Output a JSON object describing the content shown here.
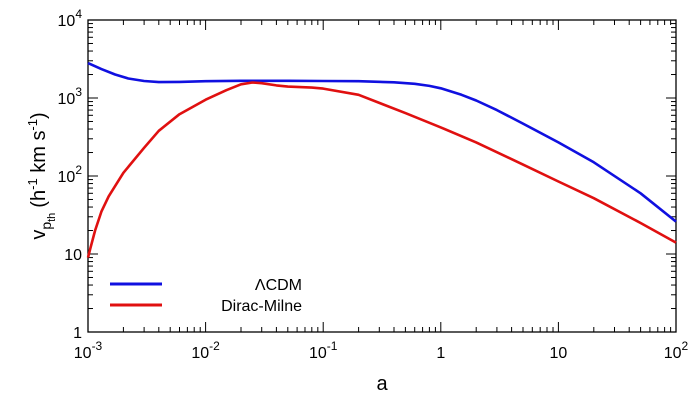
{
  "chart_data": {
    "type": "line",
    "title": "",
    "xlabel": "a",
    "ylabel": "v_p_th (h^-1 km s^-1)",
    "ylabel_parts": {
      "base": "v",
      "sub": "p",
      "subsub": "th",
      "open": "(h",
      "exp1": "-1",
      "mid": " km s",
      "exp2": "-1",
      "close": ")"
    },
    "xscale": "log",
    "yscale": "log",
    "xlim": [
      0.001,
      100
    ],
    "ylim": [
      1,
      10000
    ],
    "grid": false,
    "legend_position": "bottom-left",
    "x_ticks": [
      {
        "value": 0.001,
        "base": "10",
        "exp": "-3"
      },
      {
        "value": 0.01,
        "base": "10",
        "exp": "-2"
      },
      {
        "value": 0.1,
        "base": "10",
        "exp": "-1"
      },
      {
        "value": 1,
        "base": "1",
        "exp": ""
      },
      {
        "value": 10,
        "base": "10",
        "exp": ""
      },
      {
        "value": 100,
        "base": "10",
        "exp": "2"
      }
    ],
    "y_ticks": [
      {
        "value": 1,
        "base": "1",
        "exp": ""
      },
      {
        "value": 10,
        "base": "10",
        "exp": ""
      },
      {
        "value": 100,
        "base": "10",
        "exp": "2"
      },
      {
        "value": 1000,
        "base": "10",
        "exp": "3"
      },
      {
        "value": 10000,
        "base": "10",
        "exp": "4"
      }
    ],
    "series": [
      {
        "name": "ΛCDM",
        "color": "#1010e0",
        "points": [
          [
            0.001,
            2800
          ],
          [
            0.0013,
            2350
          ],
          [
            0.0017,
            2000
          ],
          [
            0.0022,
            1780
          ],
          [
            0.003,
            1650
          ],
          [
            0.004,
            1600
          ],
          [
            0.006,
            1610
          ],
          [
            0.01,
            1640
          ],
          [
            0.02,
            1660
          ],
          [
            0.05,
            1660
          ],
          [
            0.1,
            1650
          ],
          [
            0.2,
            1640
          ],
          [
            0.4,
            1590
          ],
          [
            0.6,
            1520
          ],
          [
            0.8,
            1430
          ],
          [
            1,
            1330
          ],
          [
            1.5,
            1100
          ],
          [
            2,
            930
          ],
          [
            3,
            700
          ],
          [
            5,
            470
          ],
          [
            10,
            270
          ],
          [
            20,
            150
          ],
          [
            50,
            60
          ],
          [
            100,
            26
          ]
        ]
      },
      {
        "name": "Dirac-Milne",
        "color": "#e01010",
        "points": [
          [
            0.001,
            9
          ],
          [
            0.00105,
            12
          ],
          [
            0.00115,
            20
          ],
          [
            0.0013,
            35
          ],
          [
            0.0015,
            55
          ],
          [
            0.002,
            110
          ],
          [
            0.003,
            230
          ],
          [
            0.004,
            380
          ],
          [
            0.006,
            620
          ],
          [
            0.01,
            950
          ],
          [
            0.015,
            1260
          ],
          [
            0.02,
            1500
          ],
          [
            0.025,
            1580
          ],
          [
            0.03,
            1550
          ],
          [
            0.04,
            1450
          ],
          [
            0.05,
            1400
          ],
          [
            0.08,
            1360
          ],
          [
            0.1,
            1320
          ],
          [
            0.2,
            1100
          ],
          [
            0.5,
            640
          ],
          [
            1,
            420
          ],
          [
            2,
            270
          ],
          [
            5,
            140
          ],
          [
            10,
            85
          ],
          [
            20,
            52
          ],
          [
            50,
            25
          ],
          [
            100,
            14
          ]
        ]
      }
    ]
  }
}
